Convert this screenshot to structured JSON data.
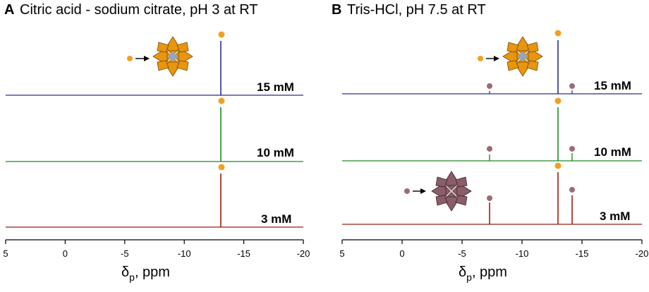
{
  "panels": [
    {
      "letter": "A",
      "title": "Citric acid - sodium citrate, pH 3 at RT",
      "xlabel": "δ",
      "xlabel_sub": "p",
      "xlabel_unit": ", ppm",
      "x_ticks": [
        "5",
        "0",
        "-5",
        "-10",
        "-15",
        "-20"
      ]
    },
    {
      "letter": "B",
      "title": "Tris-HCl, pH 7.5 at RT",
      "xlabel": "δ",
      "xlabel_sub": "p",
      "xlabel_unit": ", ppm",
      "x_ticks": [
        "5",
        "0",
        "-5",
        "-10",
        "-15",
        "-20"
      ]
    }
  ],
  "colors": {
    "15mM": "#2b2b8f",
    "10mM": "#1f8a1f",
    "3mM": "#9a1f14",
    "orange_marker": "#f2a024",
    "mauve_marker": "#9c6b78",
    "polyhedron_orange": "#e8950f",
    "polyhedron_mauve": "#8a5d68"
  },
  "chart_data": [
    {
      "type": "line",
      "title": "Citric acid - sodium citrate, pH 3 at RT",
      "xlabel": "δp, ppm",
      "xlim": [
        5,
        -20
      ],
      "series": [
        {
          "name": "15 mM",
          "peaks": [
            {
              "ppm": -12.7,
              "intensity": 1.0,
              "marker": "orange"
            }
          ]
        },
        {
          "name": "10 mM",
          "peaks": [
            {
              "ppm": -12.7,
              "intensity": 1.0,
              "marker": "orange"
            }
          ]
        },
        {
          "name": "3 mM",
          "peaks": [
            {
              "ppm": -12.7,
              "intensity": 1.0,
              "marker": "orange"
            }
          ]
        }
      ]
    },
    {
      "type": "line",
      "title": "Tris-HCl, pH 7.5 at RT",
      "xlabel": "δp, ppm",
      "xlim": [
        5,
        -20
      ],
      "series": [
        {
          "name": "15 mM",
          "peaks": [
            {
              "ppm": -7.4,
              "intensity": 0.04,
              "marker": "mauve"
            },
            {
              "ppm": -12.9,
              "intensity": 1.0,
              "marker": "orange"
            },
            {
              "ppm": -14.1,
              "intensity": 0.05,
              "marker": "mauve"
            }
          ]
        },
        {
          "name": "10 mM",
          "peaks": [
            {
              "ppm": -7.4,
              "intensity": 0.1,
              "marker": "mauve"
            },
            {
              "ppm": -12.9,
              "intensity": 0.85,
              "marker": "orange"
            },
            {
              "ppm": -14.1,
              "intensity": 0.12,
              "marker": "mauve"
            }
          ]
        },
        {
          "name": "3 mM",
          "peaks": [
            {
              "ppm": -7.4,
              "intensity": 0.36,
              "marker": "mauve"
            },
            {
              "ppm": -12.9,
              "intensity": 0.8,
              "marker": "orange"
            },
            {
              "ppm": -14.1,
              "intensity": 0.48,
              "marker": "mauve"
            }
          ]
        }
      ]
    }
  ]
}
